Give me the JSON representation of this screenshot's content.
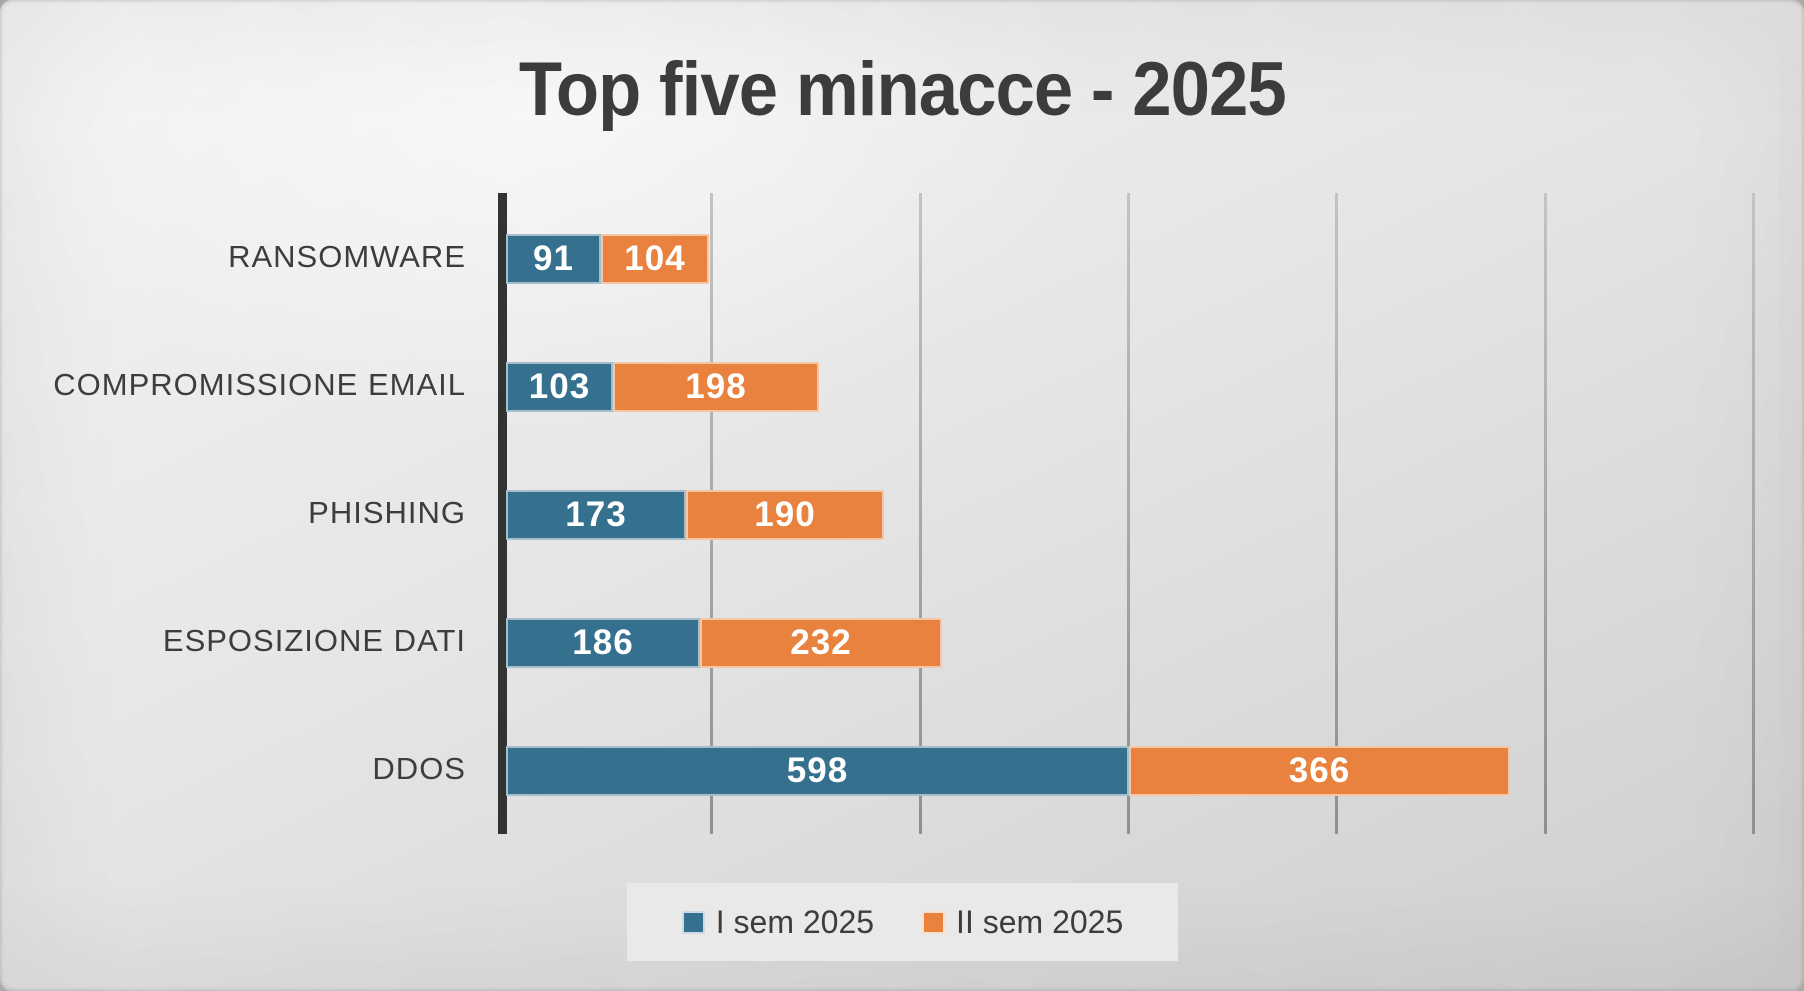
{
  "chart_data": {
    "type": "bar",
    "variant": "horizontal-stacked",
    "title": "Top five minacce - 2025",
    "categories": [
      "RANSOMWARE",
      "COMPROMISSIONE EMAIL",
      "PHISHING",
      "ESPOSIZIONE DATI",
      "DDOS"
    ],
    "series": [
      {
        "name": "I sem 2025",
        "color": "#35708F",
        "values": [
          91,
          103,
          173,
          186,
          598
        ]
      },
      {
        "name": "II sem 2025",
        "color": "#E8823E",
        "values": [
          104,
          198,
          190,
          232,
          366
        ]
      }
    ],
    "xlim": [
      0,
      1200
    ],
    "grid_step": 200,
    "grid": "vertical gridlines every 200 units, no tick labels",
    "legend_position": "bottom-center",
    "value_labels": "white bold numbers centered inside each segment"
  },
  "colors": {
    "series_1": "#35708F",
    "series_2": "#E8823E",
    "title_text": "#3C3C3C",
    "category_text": "#3D3D3D",
    "value_text": "#FFFFFF",
    "axis_line": "#333333",
    "gridline": "#9E9E9E",
    "legend_background": "#E9E9E9"
  }
}
